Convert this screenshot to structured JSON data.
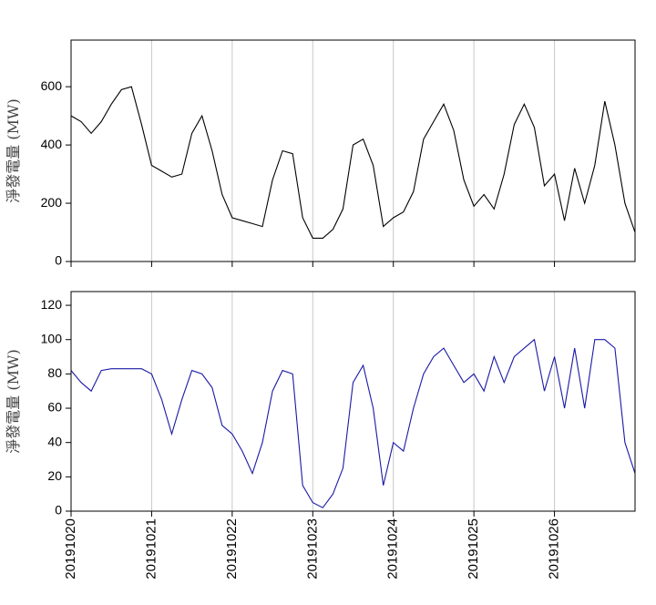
{
  "chart_data": [
    {
      "type": "line",
      "ylabel": "淨發電量 (MW)",
      "color": "#000000",
      "x": [
        0,
        0.125,
        0.25,
        0.375,
        0.5,
        0.625,
        0.75,
        0.875,
        1,
        1.125,
        1.25,
        1.375,
        1.5,
        1.625,
        1.75,
        1.875,
        2,
        2.125,
        2.25,
        2.375,
        2.5,
        2.625,
        2.75,
        2.875,
        3,
        3.125,
        3.25,
        3.375,
        3.5,
        3.625,
        3.75,
        3.875,
        4,
        4.125,
        4.25,
        4.375,
        4.5,
        4.625,
        4.75,
        4.875,
        5,
        5.125,
        5.25,
        5.375,
        5.5,
        5.625,
        5.75,
        5.875,
        6,
        6.125,
        6.25,
        6.375,
        6.5,
        6.625,
        6.75,
        6.875,
        7
      ],
      "values": [
        500,
        480,
        440,
        480,
        540,
        590,
        600,
        470,
        330,
        310,
        290,
        300,
        440,
        500,
        380,
        230,
        150,
        140,
        130,
        120,
        280,
        380,
        370,
        150,
        80,
        80,
        110,
        180,
        400,
        420,
        330,
        120,
        150,
        170,
        240,
        420,
        480,
        540,
        450,
        280,
        190,
        230,
        180,
        300,
        470,
        540,
        460,
        260,
        300,
        140,
        320,
        200,
        330,
        550,
        400,
        200,
        100
      ],
      "xlim": [
        0,
        7
      ],
      "xticks": [
        0,
        1,
        2,
        3,
        4,
        5,
        6
      ],
      "ylim": [
        0,
        760
      ],
      "yticks": [
        0,
        200,
        400,
        600
      ],
      "grid": true
    },
    {
      "type": "line",
      "ylabel": "淨發電量 (MW)",
      "color": "#1a1aa6",
      "x": [
        0,
        0.125,
        0.25,
        0.375,
        0.5,
        0.625,
        0.75,
        0.875,
        1,
        1.125,
        1.25,
        1.375,
        1.5,
        1.625,
        1.75,
        1.875,
        2,
        2.125,
        2.25,
        2.375,
        2.5,
        2.625,
        2.75,
        2.875,
        3,
        3.125,
        3.25,
        3.375,
        3.5,
        3.625,
        3.75,
        3.875,
        4,
        4.125,
        4.25,
        4.375,
        4.5,
        4.625,
        4.75,
        4.875,
        5,
        5.125,
        5.25,
        5.375,
        5.5,
        5.625,
        5.75,
        5.875,
        6,
        6.125,
        6.25,
        6.375,
        6.5,
        6.625,
        6.75,
        6.875,
        7
      ],
      "values": [
        82,
        75,
        70,
        82,
        83,
        83,
        83,
        83,
        80,
        65,
        45,
        65,
        82,
        80,
        72,
        50,
        45,
        35,
        22,
        40,
        70,
        82,
        80,
        15,
        5,
        2,
        10,
        25,
        75,
        85,
        60,
        15,
        40,
        35,
        60,
        80,
        90,
        95,
        85,
        75,
        80,
        70,
        90,
        75,
        90,
        95,
        100,
        70,
        90,
        60,
        95,
        60,
        100,
        100,
        95,
        40,
        22
      ],
      "xlim": [
        0,
        7
      ],
      "xticks": [
        {
          "value": 0,
          "label": "20191020"
        },
        {
          "value": 1,
          "label": "20191021"
        },
        {
          "value": 2,
          "label": "20191022"
        },
        {
          "value": 3,
          "label": "20191023"
        },
        {
          "value": 4,
          "label": "20191024"
        },
        {
          "value": 5,
          "label": "20191025"
        },
        {
          "value": 6,
          "label": "20191026"
        }
      ],
      "ylim": [
        0,
        128
      ],
      "yticks": [
        0,
        20,
        40,
        60,
        80,
        100,
        120
      ],
      "grid": true
    }
  ]
}
